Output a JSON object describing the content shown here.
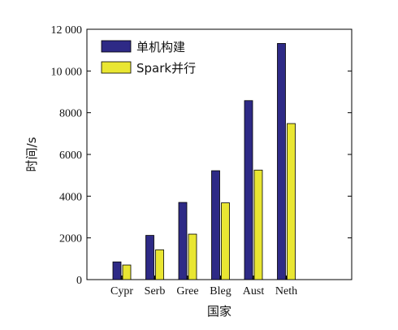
{
  "chart_data": {
    "type": "bar",
    "title": "",
    "xlabel": "国家",
    "ylabel": "时间/s",
    "categories": [
      "Cypr",
      "Serb",
      "Gree",
      "Bleg",
      "Aust",
      "Neth"
    ],
    "series": [
      {
        "name": "单机构建",
        "values": [
          850,
          2120,
          3700,
          5220,
          8580,
          11320
        ]
      },
      {
        "name": "Spark并行",
        "values": [
          700,
          1430,
          2180,
          3680,
          5250,
          7480
        ]
      }
    ],
    "ylim": [
      0,
      12000
    ],
    "yticks": [
      0,
      2000,
      4000,
      6000,
      8000,
      10000,
      12000
    ],
    "ytick_labels": [
      "0",
      "2000",
      "4000",
      "6000",
      "8000",
      "10 000",
      "12 000"
    ],
    "grid": false,
    "legend_position": "top-left",
    "colors": {
      "series": [
        "#2e2a86",
        "#e9e632"
      ],
      "axis": "#000000"
    }
  }
}
